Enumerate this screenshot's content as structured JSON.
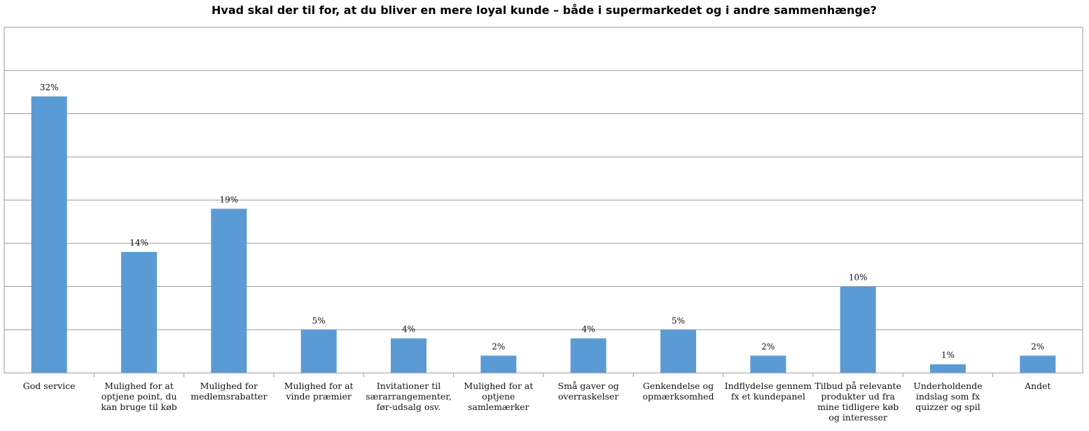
{
  "chart_data": {
    "type": "bar",
    "title": "Hvad skal der til for, at du bliver en mere loyal kunde – både i supermarkedet og i andre sammenhænge?",
    "xlabel": "",
    "ylabel": "",
    "ylim": [
      0,
      40
    ],
    "grid": true,
    "legend": "none",
    "bar_color": "#5b9bd5",
    "categories": [
      [
        "God service"
      ],
      [
        "Mulighed for at",
        "optjene point, du",
        "kan bruge til køb"
      ],
      [
        "Mulighed for",
        "medlemsrabatter"
      ],
      [
        "Mulighed for at",
        "vinde præmier"
      ],
      [
        "Invitationer til",
        "særarrangementer,",
        "før-udsalg osv."
      ],
      [
        "Mulighed for at",
        "optjene",
        "samlemærker"
      ],
      [
        "Små gaver og",
        "overraskelser"
      ],
      [
        "Genkendelse og",
        "opmærksomhed"
      ],
      [
        "Indflydelse gennem",
        "fx et kundepanel"
      ],
      [
        "Tilbud på relevante",
        "produkter ud fra",
        "mine tidligere køb",
        "og interesser"
      ],
      [
        "Underholdende",
        "indslag som fx",
        "quizzer og spil"
      ],
      [
        "Andet"
      ]
    ],
    "values": [
      32,
      14,
      19,
      5,
      4,
      2,
      4,
      5,
      2,
      10,
      1,
      2
    ],
    "data_labels": [
      "32%",
      "14%",
      "19%",
      "5%",
      "4%",
      "2%",
      "4%",
      "5%",
      "2%",
      "10%",
      "1%",
      "2%"
    ]
  }
}
